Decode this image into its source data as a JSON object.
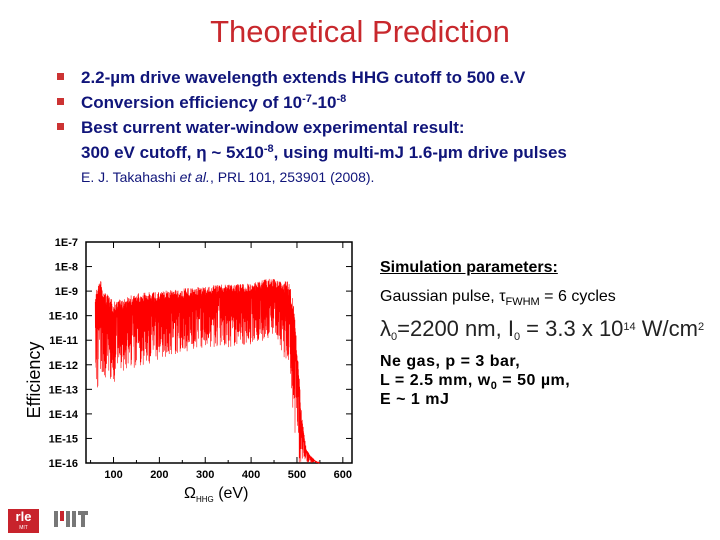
{
  "title": "Theoretical Prediction",
  "bullets": {
    "b1_text": "2.2-",
    "b1_mu": "µ",
    "b1_rest": "m drive wavelength extends HHG cutoff to 500 e.V",
    "b2_text": "Conversion efficiency of 10",
    "b2_exp1": "-7",
    "b2_mid": "-10",
    "b2_exp2": "-8",
    "b3_text": "Best current water-window experimental result:",
    "b3_cont_a": "300 eV cutoff, ",
    "b3_eta": "η",
    "b3_cont_b": " ~ 5x10",
    "b3_exp": "-8",
    "b3_cont_c": ", using multi-mJ 1.6-",
    "b3_mu": "µ",
    "b3_cont_d": "m drive pulses",
    "ref_a": "E. J. Takahashi ",
    "ref_etal": "et al.",
    "ref_b": ", PRL 101, 253901 (2008)."
  },
  "sim": {
    "heading": "Simulation parameters:",
    "pulse_a": "Gaussian pulse, ",
    "tau": "τ",
    "fwhm": "FWHM",
    "pulse_b": " = 6 cycles",
    "lambda": "λ",
    "lambda_sub": "0",
    "lambda_val": "=2200 nm, I",
    "I_sub": "0",
    "I_val": " = 3.3 x 10",
    "I_exp": "14",
    "I_unit": " W/cm",
    "I_unit_exp": "2",
    "gas": "Ne gas, p = 3 bar,",
    "len_a": "L = 2.5 mm, w",
    "len_sub": "0",
    "len_b": " = 50 ",
    "len_mu": "µ",
    "len_c": "m,",
    "energy": "E ~ 1 mJ"
  },
  "logos": {
    "rle": "rle",
    "rle_small": "MIT"
  },
  "colors": {
    "title": "#c8282d",
    "text": "#10157a",
    "series": "#ff0000",
    "bullet": "#cc3333"
  },
  "chart_data": {
    "type": "line",
    "ylabel": "Efficiency",
    "xlabel_symbol": "Ω",
    "xlabel_sub": "HHG",
    "xlabel_unit": " (eV)",
    "x_ticks": [
      100,
      200,
      300,
      400,
      500,
      600
    ],
    "y_ticks": [
      "1E-7",
      "1E-8",
      "1E-9",
      "1E-10",
      "1E-11",
      "1E-12",
      "1E-13",
      "1E-14",
      "1E-15",
      "1E-16"
    ],
    "xlim": [
      40,
      620
    ],
    "ylim_exp": [
      -16,
      -7
    ],
    "series": [
      {
        "color": "#ff0000",
        "envelope": {
          "x": [
            60,
            70,
            80,
            100,
            120,
            150,
            200,
            250,
            300,
            350,
            400,
            430,
            450,
            460,
            470,
            480,
            485,
            490,
            495,
            500,
            505,
            510,
            520,
            530,
            540,
            550
          ],
          "log_upper": [
            -9.1,
            -8.4,
            -9.0,
            -9.4,
            -9.3,
            -9.1,
            -9.0,
            -8.9,
            -8.8,
            -8.7,
            -8.7,
            -8.5,
            -8.5,
            -8.6,
            -8.6,
            -8.6,
            -8.8,
            -9.1,
            -9.8,
            -11.0,
            -12.5,
            -14.0,
            -15.4,
            -15.7,
            -15.9,
            -16.0
          ],
          "log_lower": [
            -13.2,
            -12.8,
            -12.5,
            -12.8,
            -12.3,
            -12.2,
            -11.8,
            -11.5,
            -11.3,
            -11.3,
            -11.2,
            -11.0,
            -10.9,
            -11.1,
            -11.6,
            -12.2,
            -12.8,
            -13.6,
            -14.8,
            -15.5,
            -16.0,
            -16.0,
            -16.0,
            -16.0,
            -16.0,
            -16.0
          ]
        }
      }
    ]
  }
}
